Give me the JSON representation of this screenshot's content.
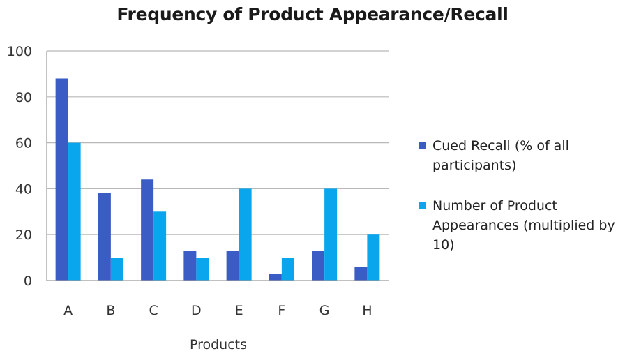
{
  "chart_data": {
    "type": "bar",
    "title": "Frequency of Product Appearance/Recall",
    "xlabel": "Products",
    "ylabel": "",
    "categories": [
      "A",
      "B",
      "C",
      "D",
      "E",
      "F",
      "G",
      "H"
    ],
    "ylim": [
      0,
      100
    ],
    "yticks": [
      "0",
      "20",
      "40",
      "60",
      "80",
      "100"
    ],
    "grid": true,
    "legend_position": "right",
    "series": [
      {
        "name": "Cued Recall (% of all participants)",
        "color": "#3b5cc4",
        "values": [
          88,
          38,
          44,
          13,
          13,
          3,
          13,
          6
        ]
      },
      {
        "name": "Number of Product Appearances (multiplied by 10)",
        "color": "#09a6ee",
        "values": [
          60,
          10,
          30,
          10,
          40,
          10,
          40,
          20
        ]
      }
    ]
  }
}
